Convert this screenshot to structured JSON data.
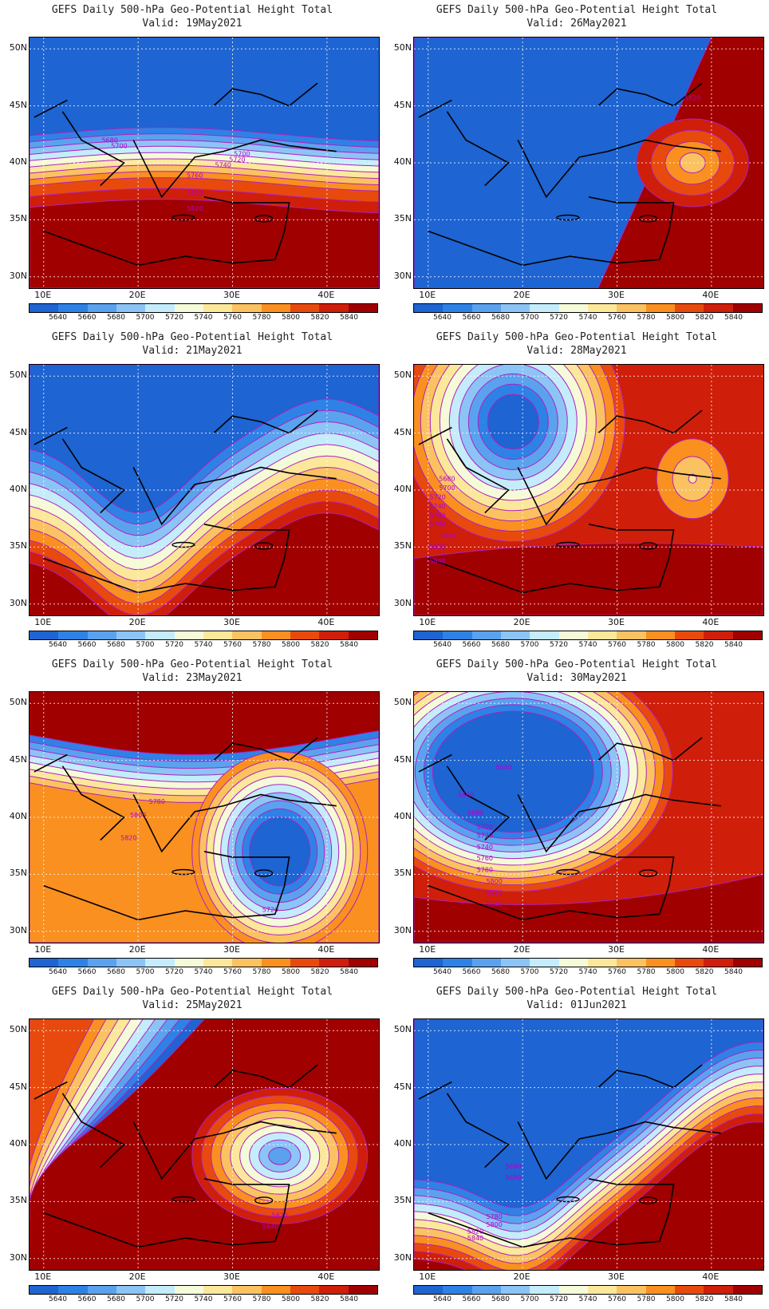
{
  "title_text": "GEFS Daily 500-hPa Geo-Potential Height Total",
  "valid_prefix": "Valid:",
  "lat_labels": [
    "50N",
    "45N",
    "40N",
    "35N",
    "30N"
  ],
  "lon_labels": [
    "10E",
    "20E",
    "30E",
    "40E"
  ],
  "colorbar_labels": [
    "5640",
    "5660",
    "5680",
    "5700",
    "5720",
    "5740",
    "5760",
    "5780",
    "5800",
    "5820",
    "5840"
  ],
  "colorbar_colors": [
    "#1e64d2",
    "#2e82e6",
    "#5aa2ee",
    "#8cc4f6",
    "#c4ecfb",
    "#f5fbd8",
    "#fbe89a",
    "#fbc262",
    "#f99020",
    "#e84a0e",
    "#cf1e0a",
    "#a00000"
  ],
  "panels": [
    {
      "id": "p1",
      "date": "19May2021",
      "pattern": "zonal",
      "contour_labels": [
        {
          "text": "5680",
          "lon": 17,
          "lat": 41.8
        },
        {
          "text": "5700",
          "lon": 18,
          "lat": 41.3
        },
        {
          "text": "5740",
          "lon": 29,
          "lat": 39.6
        },
        {
          "text": "5720",
          "lon": 30.5,
          "lat": 40.1
        },
        {
          "text": "5700",
          "lon": 31,
          "lat": 40.6
        },
        {
          "text": "5760",
          "lon": 26,
          "lat": 38.7
        },
        {
          "text": "5800",
          "lon": 26,
          "lat": 37.2
        },
        {
          "text": "5820",
          "lon": 26,
          "lat": 35.8
        }
      ]
    },
    {
      "id": "p2",
      "date": "26May2021",
      "pattern": "ridge_east",
      "contour_labels": [
        {
          "text": "5820",
          "lon": 38,
          "lat": 45.5
        }
      ]
    },
    {
      "id": "p3",
      "date": "21May2021",
      "pattern": "trough_west",
      "contour_labels": []
    },
    {
      "id": "p4",
      "date": "28May2021",
      "pattern": "trough_west_small",
      "contour_labels": [
        {
          "text": "5680",
          "lon": 12,
          "lat": 40.8
        },
        {
          "text": "5700",
          "lon": 12,
          "lat": 40.0
        },
        {
          "text": "5720",
          "lon": 11,
          "lat": 39.2
        },
        {
          "text": "5740",
          "lon": 11,
          "lat": 38.4
        },
        {
          "text": "5760",
          "lon": 11,
          "lat": 37.6
        },
        {
          "text": "5780",
          "lon": 11,
          "lat": 36.8
        },
        {
          "text": "5800",
          "lon": 12,
          "lat": 35.8
        },
        {
          "text": "5820",
          "lon": 11,
          "lat": 34.8
        },
        {
          "text": "5840",
          "lon": 11,
          "lat": 33.6
        }
      ]
    },
    {
      "id": "p5",
      "date": "23May2021",
      "pattern": "cutoff_low",
      "contour_labels": [
        {
          "text": "5780",
          "lon": 22,
          "lat": 41.2
        },
        {
          "text": "5800",
          "lon": 20,
          "lat": 40.0
        },
        {
          "text": "5820",
          "lon": 19,
          "lat": 38.0
        },
        {
          "text": "5720",
          "lon": 34,
          "lat": 31.7
        }
      ]
    },
    {
      "id": "p6",
      "date": "30May2021",
      "pattern": "trough_central",
      "contour_labels": [
        {
          "text": "5640",
          "lon": 18,
          "lat": 44.2
        },
        {
          "text": "5660",
          "lon": 14,
          "lat": 41.8
        },
        {
          "text": "5680",
          "lon": 15,
          "lat": 40.2
        },
        {
          "text": "5700",
          "lon": 16,
          "lat": 39.0
        },
        {
          "text": "5720",
          "lon": 16,
          "lat": 38.2
        },
        {
          "text": "5740",
          "lon": 16,
          "lat": 37.2
        },
        {
          "text": "5760",
          "lon": 16,
          "lat": 36.2
        },
        {
          "text": "5780",
          "lon": 16,
          "lat": 35.2
        },
        {
          "text": "5800",
          "lon": 17,
          "lat": 34.2
        },
        {
          "text": "5820",
          "lon": 17,
          "lat": 33.2
        },
        {
          "text": "5840",
          "lon": 17,
          "lat": 32.2
        }
      ]
    },
    {
      "id": "p7",
      "date": "25May2021",
      "pattern": "high_east",
      "contour_labels": [
        {
          "text": "5820",
          "lon": 35,
          "lat": 33.6
        },
        {
          "text": "5840",
          "lon": 34,
          "lat": 32.6
        }
      ]
    },
    {
      "id": "p8",
      "date": "01Jun2021",
      "pattern": "deep_trough",
      "contour_labels": [
        {
          "text": "5680",
          "lon": 19,
          "lat": 37.9
        },
        {
          "text": "5680",
          "lon": 19,
          "lat": 36.9
        },
        {
          "text": "5780",
          "lon": 17,
          "lat": 33.5
        },
        {
          "text": "5800",
          "lon": 17,
          "lat": 32.8
        },
        {
          "text": "5820",
          "lon": 15,
          "lat": 32.2
        },
        {
          "text": "5840",
          "lon": 15,
          "lat": 31.6
        }
      ]
    }
  ]
}
